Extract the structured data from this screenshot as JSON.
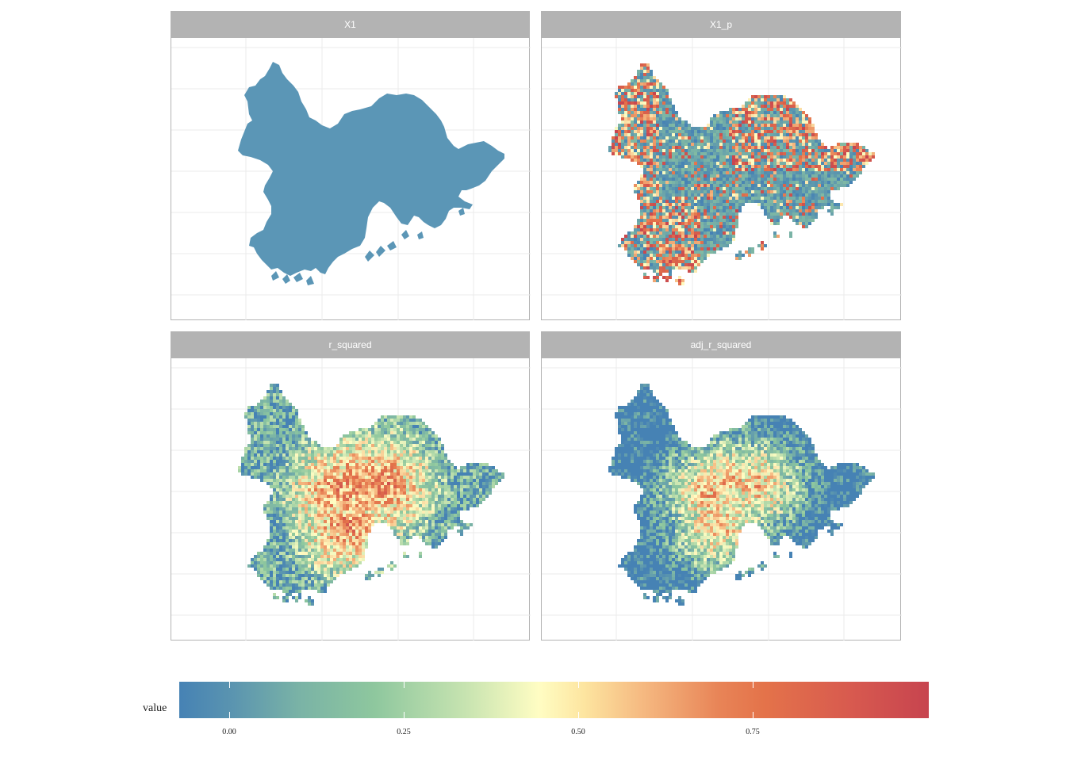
{
  "panels": [
    {
      "title": "X1"
    },
    {
      "title": "X1_p"
    },
    {
      "title": "r_squared"
    },
    {
      "title": "adj_r_squared"
    }
  ],
  "legend": {
    "title": "value",
    "ticks": [
      "0.00",
      "0.25",
      "0.50",
      "0.75"
    ],
    "colors": [
      "#4682b4",
      "#8ec79e",
      "#fffdc3",
      "#e4734a",
      "#c7444f"
    ]
  },
  "colors": {
    "strip": "#b3b3b3",
    "strip_text": "#ffffff",
    "uniform_fill": "#5b96b6"
  }
}
